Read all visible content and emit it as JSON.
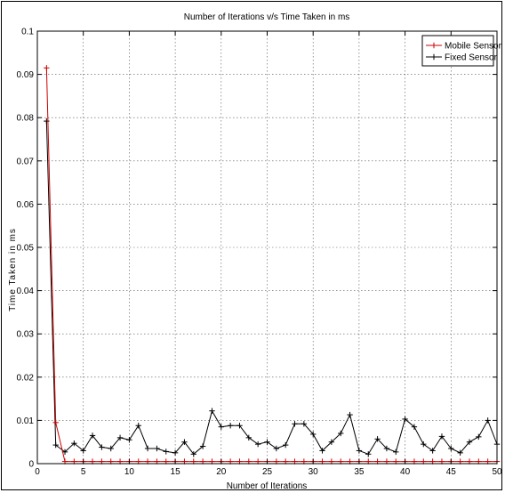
{
  "chart_data": {
    "type": "line",
    "title": "Number of Iterations v/s Time Taken in ms",
    "xlabel": "Number of Iterations",
    "ylabel": "Time Taken in ms",
    "xlim": [
      0,
      50
    ],
    "ylim": [
      0,
      0.1
    ],
    "xticks": [
      "0",
      "5",
      "10",
      "15",
      "20",
      "25",
      "30",
      "35",
      "40",
      "45",
      "50"
    ],
    "yticks": [
      "0",
      "0.01",
      "0.02",
      "0.03",
      "0.04",
      "0.05",
      "0.06",
      "0.07",
      "0.08",
      "0.09",
      "0.1"
    ],
    "grid": true,
    "legend_position": "top-right",
    "x": [
      1,
      2,
      3,
      4,
      5,
      6,
      7,
      8,
      9,
      10,
      11,
      12,
      13,
      14,
      15,
      16,
      17,
      18,
      19,
      20,
      21,
      22,
      23,
      24,
      25,
      26,
      27,
      28,
      29,
      30,
      31,
      32,
      33,
      34,
      35,
      36,
      37,
      38,
      39,
      40,
      41,
      42,
      43,
      44,
      45,
      46,
      47,
      48,
      49,
      50
    ],
    "series": [
      {
        "name": "Mobile Sensor",
        "color": "#cc0000",
        "values": [
          0.0915,
          0.0095,
          0.0005,
          0.0005,
          0.0005,
          0.0005,
          0.0005,
          0.0005,
          0.0005,
          0.0005,
          0.0005,
          0.0005,
          0.0005,
          0.0005,
          0.0005,
          0.0005,
          0.0005,
          0.0005,
          0.0005,
          0.0005,
          0.0005,
          0.0005,
          0.0005,
          0.0005,
          0.0005,
          0.0005,
          0.0005,
          0.0005,
          0.0005,
          0.0005,
          0.0005,
          0.0005,
          0.0005,
          0.0005,
          0.0005,
          0.0005,
          0.0005,
          0.0005,
          0.0005,
          0.0005,
          0.0005,
          0.0005,
          0.0005,
          0.0005,
          0.0005,
          0.0005,
          0.0005,
          0.0005,
          0.0005,
          0.0005
        ]
      },
      {
        "name": "Fixed Sensor",
        "color": "#000000",
        "values": [
          0.0792,
          0.0043,
          0.0027,
          0.0047,
          0.003,
          0.0065,
          0.0038,
          0.0035,
          0.006,
          0.0055,
          0.0088,
          0.0035,
          0.0035,
          0.0028,
          0.0025,
          0.005,
          0.0022,
          0.004,
          0.0122,
          0.0085,
          0.0088,
          0.0088,
          0.006,
          0.0045,
          0.005,
          0.0035,
          0.0043,
          0.0092,
          0.0092,
          0.0068,
          0.003,
          0.005,
          0.007,
          0.0113,
          0.003,
          0.0022,
          0.0057,
          0.0035,
          0.0027,
          0.0103,
          0.0085,
          0.0045,
          0.003,
          0.0063,
          0.0035,
          0.0025,
          0.005,
          0.0062,
          0.01,
          0.0045
        ]
      }
    ]
  }
}
